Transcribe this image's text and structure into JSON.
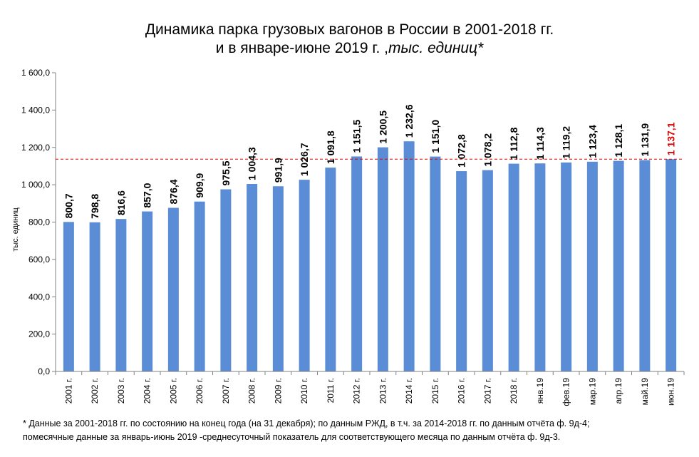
{
  "chart_data": {
    "type": "bar",
    "title_line1": "Динамика парка грузовых вагонов в России в 2001-2018 гг.",
    "title_line2_prefix": "и в январе-июне 2019 г. ,",
    "title_line2_unit": "тыс. единиц*",
    "ylabel": "тыс. единиц",
    "xlabel": "",
    "ylim": [
      0,
      1600
    ],
    "ytick_step": 200,
    "yticks": [
      "0,0",
      "200,0",
      "400,0",
      "600,0",
      "800,0",
      "1 000,0",
      "1 200,0",
      "1 400,0",
      "1 600,0"
    ],
    "categories": [
      "2001 г.",
      "2002 г.",
      "2003 г.",
      "2004 г.",
      "2005 г.",
      "2006 г.",
      "2007 г.",
      "2008 г.",
      "2009 г.",
      "2010 г.",
      "2011 г.",
      "2012 г.",
      "2013 г.",
      "2014 г.",
      "2015 г.",
      "2016 г.",
      "2017 г.",
      "2018 г.",
      "янв.19",
      "фев.19",
      "мар.19",
      "апр.19",
      "май.19",
      "июн.19"
    ],
    "values": [
      800.7,
      798.8,
      816.6,
      857.0,
      876.4,
      909.9,
      975.5,
      1004.3,
      991.9,
      1026.7,
      1091.8,
      1151.5,
      1200.5,
      1232.6,
      1151.0,
      1072.8,
      1078.2,
      1112.8,
      1114.3,
      1119.2,
      1123.4,
      1128.1,
      1131.9,
      1137.1
    ],
    "value_labels": [
      "800,7",
      "798,8",
      "816,6",
      "857,0",
      "876,4",
      "909,9",
      "975,5",
      "1 004,3",
      "991,9",
      "1 026,7",
      "1 091,8",
      "1 151,5",
      "1 200,5",
      "1 232,6",
      "1 151,0",
      "1 072,8",
      "1 078,2",
      "1 112,8",
      "1 114,3",
      "1 119,2",
      "1 123,4",
      "1 128,1",
      "1 131,9",
      "1 137,1"
    ],
    "highlight_index": 23,
    "reference_line_value": 1137.1,
    "grid": false,
    "legend": "none",
    "colors": {
      "bar": "#5b8dd6",
      "highlight_label": "#e00000",
      "reference_line": "#e00000",
      "axis": "#808080"
    }
  },
  "footnote": {
    "line1": "* Данные за 2001-2018  гг. по состоянию на конец года (на 31 декабря); по данным РЖД, в т.ч. за  2014-2018  гг. по данным отчёта ф. 9д-4;",
    "line2": "помесячные данные за январь-июнь 2019 -среднесуточный показатель для соответствующего месяца  по данным отчёта ф. 9д-3."
  }
}
